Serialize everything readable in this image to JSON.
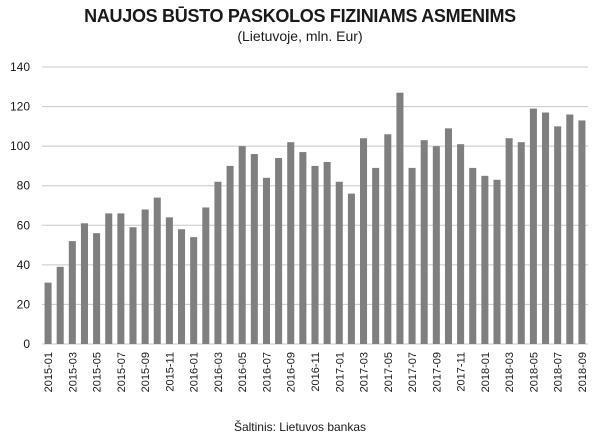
{
  "chart_data": {
    "type": "bar",
    "title": "NAUJOS BŪSTO PASKOLOS FIZINIAMS ASMENIMS",
    "subtitle": "(Lietuvoje, mln. Eur)",
    "source": "Šaltinis: Lietuvos bankas",
    "ylim": [
      0,
      140
    ],
    "yticks": [
      0,
      20,
      40,
      60,
      80,
      100,
      120,
      140
    ],
    "grid": true,
    "bar_color": "#7f7f7f",
    "grid_color": "#c8c8c8",
    "categories": [
      "2015-01",
      "2015-02",
      "2015-03",
      "2015-04",
      "2015-05",
      "2015-06",
      "2015-07",
      "2015-08",
      "2015-09",
      "2015-10",
      "2015-11",
      "2015-12",
      "2016-01",
      "2016-02",
      "2016-03",
      "2016-04",
      "2016-05",
      "2016-06",
      "2016-07",
      "2016-08",
      "2016-09",
      "2016-10",
      "2016-11",
      "2016-12",
      "2017-01",
      "2017-02",
      "2017-03",
      "2017-04",
      "2017-05",
      "2017-06",
      "2017-07",
      "2017-08",
      "2017-09",
      "2017-10",
      "2017-11",
      "2017-12",
      "2018-01",
      "2018-02",
      "2018-03",
      "2018-04",
      "2018-05",
      "2018-06",
      "2018-07",
      "2018-08",
      "2018-09"
    ],
    "xtick_labels": [
      "2015-01",
      "2015-03",
      "2015-05",
      "2015-07",
      "2015-09",
      "2015-11",
      "2016-01",
      "2016-03",
      "2016-05",
      "2016-07",
      "2016-09",
      "2016-11",
      "2017-01",
      "2017-03",
      "2017-05",
      "2017-07",
      "2017-09",
      "2017-11",
      "2018-01",
      "2018-03",
      "2018-05",
      "2018-07",
      "2018-09"
    ],
    "values": [
      31,
      39,
      52,
      61,
      56,
      66,
      66,
      59,
      68,
      74,
      64,
      58,
      54,
      69,
      82,
      90,
      100,
      96,
      84,
      94,
      102,
      97,
      90,
      92,
      82,
      76,
      104,
      89,
      106,
      127,
      89,
      103,
      100,
      109,
      101,
      89,
      85,
      83,
      104,
      102,
      119,
      117,
      110,
      116,
      113
    ]
  }
}
